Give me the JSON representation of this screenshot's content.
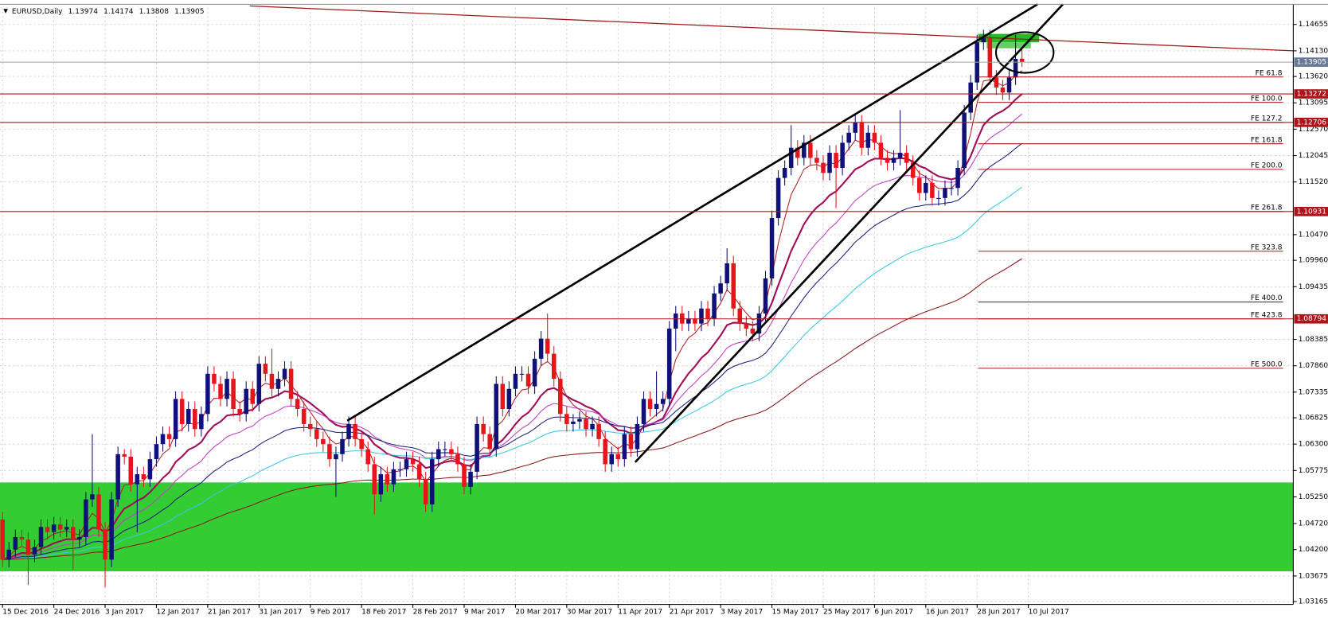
{
  "chart_data": {
    "type": "candlestick",
    "symbol": "EURUSD,Daily",
    "up_color": "#10107a",
    "down_color": "#e8141c",
    "grid": true,
    "xlim": [
      0,
      201
    ],
    "ylim": [
      1.0311,
      1.1499
    ],
    "xticks": [
      {
        "value": 0,
        "label": "15 Dec 2016"
      },
      {
        "value": 8,
        "label": "24 Dec 2016"
      },
      {
        "value": 16,
        "label": "3 Jan 2017"
      },
      {
        "value": 24,
        "label": "12 Jan 2017"
      },
      {
        "value": 32,
        "label": "21 Jan 2017"
      },
      {
        "value": 40,
        "label": "31 Jan 2017"
      },
      {
        "value": 48,
        "label": "9 Feb 2017"
      },
      {
        "value": 56,
        "label": "18 Feb 2017"
      },
      {
        "value": 64,
        "label": "28 Feb 2017"
      },
      {
        "value": 72,
        "label": "9 Mar 2017"
      },
      {
        "value": 80,
        "label": "20 Mar 2017"
      },
      {
        "value": 88,
        "label": "30 Mar 2017"
      },
      {
        "value": 96,
        "label": "11 Apr 2017"
      },
      {
        "value": 104,
        "label": "21 Apr 2017"
      },
      {
        "value": 112,
        "label": "3 May 2017"
      },
      {
        "value": 120,
        "label": "15 May 2017"
      },
      {
        "value": 128,
        "label": "25 May 2017"
      },
      {
        "value": 136,
        "label": "6 Jun 2017"
      },
      {
        "value": 144,
        "label": "16 Jun 2017"
      },
      {
        "value": 152,
        "label": "28 Jun 2017"
      },
      {
        "value": 160,
        "label": "10 Jul 2017"
      }
    ],
    "yticks": [
      1.14655,
      {
        "value": 1.1413,
        "label": "1.14130"
      },
      {
        "value": 1.1362,
        "label": "1.13620"
      },
      1.13095,
      {
        "value": 1.1257,
        "label": "1.12570"
      },
      1.12045,
      {
        "value": 1.1152,
        "label": "1.11520"
      },
      {
        "value": 1.1047,
        "label": "1.10470"
      },
      {
        "value": 1.0996,
        "label": "1.09960"
      },
      1.09435,
      1.08385,
      {
        "value": 1.0786,
        "label": "1.07860"
      },
      1.07335,
      1.06825,
      {
        "value": 1.063,
        "label": "1.06300"
      },
      1.05775,
      {
        "value": 1.0525,
        "label": "1.05250"
      },
      {
        "value": 1.0472,
        "label": "1.04720"
      },
      {
        "value": 1.042,
        "label": "1.04200"
      },
      1.03675,
      1.03165
    ],
    "price_lines": [
      {
        "value": 1.13905,
        "color": "#6a7a95"
      },
      {
        "value": 1.13272,
        "color": "#b0141a"
      },
      {
        "value": 1.12706,
        "color": "#b0141a"
      },
      {
        "value": 1.10931,
        "color": "#b0141a"
      },
      {
        "value": 1.08794,
        "color": "#b0141a"
      }
    ],
    "fe_levels": [
      {
        "label": "FE 61.8",
        "price": 1.1361
      },
      {
        "label": "FE 100.0",
        "price": 1.13105
      },
      {
        "label": "FE 127.2",
        "price": 1.12706
      },
      {
        "label": "FE 161.8",
        "price": 1.1228
      },
      {
        "label": "FE 200.0",
        "price": 1.1177
      },
      {
        "label": "FE 261.8",
        "price": 1.10931
      },
      {
        "label": "FE 323.8",
        "price": 1.1014
      },
      {
        "label": "FE 400.0",
        "price": 1.0913
      },
      {
        "label": "FE 423.8",
        "price": 1.08794
      },
      {
        "label": "FE 500.0",
        "price": 1.0781
      }
    ],
    "moving_averages": [
      {
        "period": 5,
        "color": "#b22222"
      },
      {
        "period": 13,
        "color": "#a0105a"
      },
      {
        "period": 21,
        "color": "#c040c0"
      },
      {
        "period": 34,
        "color": "#1a237e"
      },
      {
        "period": 55,
        "color": "#38c8e8"
      },
      {
        "period": 100,
        "color": "#8b1a1a"
      }
    ],
    "ohlc": [
      [
        1.048,
        1.0495,
        1.0385,
        1.04
      ],
      [
        1.04,
        1.0435,
        1.0385,
        1.042
      ],
      [
        1.042,
        1.046,
        1.0405,
        1.0445
      ],
      [
        1.0445,
        1.046,
        1.0425,
        1.044
      ],
      [
        1.044,
        1.0455,
        1.035,
        1.041
      ],
      [
        1.041,
        1.044,
        1.0395,
        1.0425
      ],
      [
        1.0425,
        1.048,
        1.041,
        1.0465
      ],
      [
        1.0465,
        1.048,
        1.044,
        1.0455
      ],
      [
        1.0455,
        1.0485,
        1.044,
        1.047
      ],
      [
        1.047,
        1.0485,
        1.0445,
        1.046
      ],
      [
        1.046,
        1.048,
        1.0445,
        1.0465
      ],
      [
        1.0465,
        1.048,
        1.038,
        1.044
      ],
      [
        1.044,
        1.046,
        1.0425,
        1.0445
      ],
      [
        1.0445,
        1.0535,
        1.043,
        1.052
      ],
      [
        1.052,
        1.065,
        1.0505,
        1.053
      ],
      [
        1.053,
        1.0545,
        1.0445,
        1.046
      ],
      [
        1.046,
        1.0475,
        1.0345,
        1.04
      ],
      [
        1.04,
        1.0535,
        1.0385,
        1.052
      ],
      [
        1.052,
        1.0625,
        1.0505,
        1.061
      ],
      [
        1.061,
        1.062,
        1.059,
        1.0605
      ],
      [
        1.0605,
        1.062,
        1.0535,
        1.055
      ],
      [
        1.055,
        1.0585,
        1.0455,
        1.057
      ],
      [
        1.057,
        1.0585,
        1.0545,
        1.056
      ],
      [
        1.056,
        1.0615,
        1.0545,
        1.06
      ],
      [
        1.06,
        1.0645,
        1.0585,
        1.063
      ],
      [
        1.063,
        1.0665,
        1.0615,
        1.065
      ],
      [
        1.065,
        1.0665,
        1.0625,
        1.064
      ],
      [
        1.064,
        1.0735,
        1.0625,
        1.072
      ],
      [
        1.072,
        1.0735,
        1.0655,
        1.067
      ],
      [
        1.067,
        1.0715,
        1.0655,
        1.07
      ],
      [
        1.07,
        1.0715,
        1.0645,
        1.066
      ],
      [
        1.066,
        1.0705,
        1.0645,
        1.069
      ],
      [
        1.069,
        1.0785,
        1.0675,
        1.077
      ],
      [
        1.077,
        1.0785,
        1.0735,
        1.075
      ],
      [
        1.075,
        1.0765,
        1.0705,
        1.072
      ],
      [
        1.072,
        1.0775,
        1.0705,
        1.076
      ],
      [
        1.076,
        1.0775,
        1.0685,
        1.07
      ],
      [
        1.07,
        1.0715,
        1.0675,
        1.069
      ],
      [
        1.069,
        1.0755,
        1.0675,
        1.074
      ],
      [
        1.074,
        1.0755,
        1.0695,
        1.071
      ],
      [
        1.071,
        1.0805,
        1.0695,
        1.079
      ],
      [
        1.079,
        1.0805,
        1.0755,
        1.077
      ],
      [
        1.077,
        1.082,
        1.0725,
        1.074
      ],
      [
        1.074,
        1.0775,
        1.0725,
        1.076
      ],
      [
        1.076,
        1.0795,
        1.0745,
        1.078
      ],
      [
        1.078,
        1.0795,
        1.0705,
        1.072
      ],
      [
        1.072,
        1.0735,
        1.0685,
        1.07
      ],
      [
        1.07,
        1.0715,
        1.0655,
        1.067
      ],
      [
        1.067,
        1.0685,
        1.0645,
        1.066
      ],
      [
        1.066,
        1.0675,
        1.0625,
        1.064
      ],
      [
        1.064,
        1.0655,
        1.0615,
        1.063
      ],
      [
        1.063,
        1.0645,
        1.0585,
        1.06
      ],
      [
        1.06,
        1.0625,
        1.0525,
        1.061
      ],
      [
        1.061,
        1.0655,
        1.0595,
        1.064
      ],
      [
        1.064,
        1.0685,
        1.0625,
        1.067
      ],
      [
        1.067,
        1.0685,
        1.0625,
        1.064
      ],
      [
        1.064,
        1.0655,
        1.0605,
        1.062
      ],
      [
        1.062,
        1.0635,
        1.0575,
        1.059
      ],
      [
        1.059,
        1.0605,
        1.049,
        1.053
      ],
      [
        1.053,
        1.0585,
        1.0515,
        1.057
      ],
      [
        1.057,
        1.0585,
        1.0535,
        1.055
      ],
      [
        1.055,
        1.0595,
        1.0535,
        1.058
      ],
      [
        1.058,
        1.0595,
        1.0565,
        1.058
      ],
      [
        1.058,
        1.0615,
        1.0565,
        1.06
      ],
      [
        1.06,
        1.0615,
        1.0575,
        1.059
      ],
      [
        1.059,
        1.0605,
        1.0545,
        1.056
      ],
      [
        1.056,
        1.0575,
        1.0495,
        1.051
      ],
      [
        1.051,
        1.0615,
        1.0495,
        1.06
      ],
      [
        1.06,
        1.0635,
        1.0585,
        1.062
      ],
      [
        1.062,
        1.0635,
        1.0605,
        1.062
      ],
      [
        1.062,
        1.0635,
        1.0595,
        1.061
      ],
      [
        1.061,
        1.0625,
        1.0575,
        1.059
      ],
      [
        1.059,
        1.0605,
        1.053,
        1.0545
      ],
      [
        1.0545,
        1.059,
        1.053,
        1.0575
      ],
      [
        1.0575,
        1.0685,
        1.056,
        1.067
      ],
      [
        1.067,
        1.0685,
        1.0635,
        1.065
      ],
      [
        1.065,
        1.0665,
        1.0605,
        1.062
      ],
      [
        1.062,
        1.0765,
        1.0605,
        1.075
      ],
      [
        1.075,
        1.0765,
        1.0685,
        1.07
      ],
      [
        1.07,
        1.0755,
        1.0685,
        1.074
      ],
      [
        1.074,
        1.0785,
        1.0725,
        1.077
      ],
      [
        1.077,
        1.0785,
        1.0755,
        1.077
      ],
      [
        1.077,
        1.0785,
        1.073,
        1.0745
      ],
      [
        1.0745,
        1.0815,
        1.073,
        1.08
      ],
      [
        1.08,
        1.0855,
        1.0785,
        1.084
      ],
      [
        1.084,
        1.089,
        1.0795,
        1.081
      ],
      [
        1.081,
        1.0825,
        1.0745,
        1.076
      ],
      [
        1.076,
        1.0775,
        1.0675,
        1.069
      ],
      [
        1.069,
        1.0705,
        1.0655,
        1.067
      ],
      [
        1.067,
        1.069,
        1.0655,
        1.0675
      ],
      [
        1.0675,
        1.0695,
        1.066,
        1.068
      ],
      [
        1.068,
        1.0695,
        1.0645,
        1.066
      ],
      [
        1.066,
        1.0685,
        1.0645,
        1.067
      ],
      [
        1.067,
        1.0685,
        1.0625,
        1.064
      ],
      [
        1.064,
        1.0655,
        1.0575,
        1.059
      ],
      [
        1.059,
        1.0625,
        1.0575,
        1.061
      ],
      [
        1.061,
        1.0625,
        1.0585,
        1.06
      ],
      [
        1.06,
        1.0665,
        1.0585,
        1.065
      ],
      [
        1.065,
        1.0665,
        1.0605,
        1.062
      ],
      [
        1.062,
        1.0685,
        1.0605,
        1.067
      ],
      [
        1.067,
        1.0735,
        1.0655,
        1.072
      ],
      [
        1.072,
        1.0735,
        1.0685,
        1.07
      ],
      [
        1.07,
        1.0775,
        1.0685,
        1.071
      ],
      [
        1.071,
        1.0735,
        1.0695,
        1.072
      ],
      [
        1.072,
        1.0875,
        1.0705,
        1.086
      ],
      [
        1.086,
        1.0905,
        1.0815,
        1.089
      ],
      [
        1.089,
        1.0905,
        1.0855,
        1.087
      ],
      [
        1.087,
        1.0895,
        1.0855,
        1.088
      ],
      [
        1.088,
        1.0895,
        1.0855,
        1.087
      ],
      [
        1.087,
        1.0915,
        1.0855,
        1.09
      ],
      [
        1.09,
        1.0915,
        1.0865,
        1.088
      ],
      [
        1.088,
        1.0945,
        1.0865,
        1.093
      ],
      [
        1.093,
        1.0965,
        1.0915,
        1.095
      ],
      [
        1.095,
        1.102,
        1.0935,
        1.099
      ],
      [
        1.099,
        1.1005,
        1.0885,
        1.09
      ],
      [
        1.09,
        1.0915,
        1.0855,
        1.087
      ],
      [
        1.087,
        1.0885,
        1.0845,
        1.086
      ],
      [
        1.086,
        1.0875,
        1.0835,
        1.085
      ],
      [
        1.085,
        1.0905,
        1.0835,
        1.089
      ],
      [
        1.089,
        1.0975,
        1.0875,
        1.096
      ],
      [
        1.096,
        1.1095,
        1.0945,
        1.108
      ],
      [
        1.108,
        1.1175,
        1.1065,
        1.116
      ],
      [
        1.116,
        1.1195,
        1.1145,
        1.118
      ],
      [
        1.118,
        1.1265,
        1.1165,
        1.122
      ],
      [
        1.122,
        1.1235,
        1.1185,
        1.12
      ],
      [
        1.12,
        1.1245,
        1.1185,
        1.123
      ],
      [
        1.123,
        1.1245,
        1.1185,
        1.12
      ],
      [
        1.12,
        1.1215,
        1.1175,
        1.119
      ],
      [
        1.119,
        1.1205,
        1.1155,
        1.117
      ],
      [
        1.117,
        1.1225,
        1.1155,
        1.121
      ],
      [
        1.121,
        1.1225,
        1.11,
        1.118
      ],
      [
        1.118,
        1.1245,
        1.1165,
        1.123
      ],
      [
        1.123,
        1.1265,
        1.1215,
        1.125
      ],
      [
        1.125,
        1.1285,
        1.1235,
        1.127
      ],
      [
        1.127,
        1.1285,
        1.1205,
        1.122
      ],
      [
        1.122,
        1.1265,
        1.1205,
        1.125
      ],
      [
        1.125,
        1.1265,
        1.1215,
        1.123
      ],
      [
        1.123,
        1.1245,
        1.1185,
        1.12
      ],
      [
        1.12,
        1.1215,
        1.1175,
        1.119
      ],
      [
        1.119,
        1.1215,
        1.1175,
        1.12
      ],
      [
        1.12,
        1.1295,
        1.1185,
        1.121
      ],
      [
        1.121,
        1.1225,
        1.1175,
        1.119
      ],
      [
        1.119,
        1.1205,
        1.1145,
        1.116
      ],
      [
        1.116,
        1.1175,
        1.1115,
        1.113
      ],
      [
        1.113,
        1.1165,
        1.1115,
        1.115
      ],
      [
        1.115,
        1.1165,
        1.1105,
        1.112
      ],
      [
        1.112,
        1.1135,
        1.1105,
        1.112
      ],
      [
        1.112,
        1.1155,
        1.1105,
        1.114
      ],
      [
        1.114,
        1.1155,
        1.1125,
        1.114
      ],
      [
        1.114,
        1.1195,
        1.1125,
        1.118
      ],
      [
        1.118,
        1.1305,
        1.1165,
        1.129
      ],
      [
        1.129,
        1.1365,
        1.1275,
        1.135
      ],
      [
        1.135,
        1.1445,
        1.1335,
        1.143
      ],
      [
        1.143,
        1.1455,
        1.1415,
        1.144
      ],
      [
        1.144,
        1.1455,
        1.1345,
        1.136
      ],
      [
        1.136,
        1.1375,
        1.1325,
        1.134
      ],
      [
        1.134,
        1.1355,
        1.1315,
        1.133
      ],
      [
        1.133,
        1.1375,
        1.1315,
        1.136
      ],
      [
        1.136,
        1.1445,
        1.1345,
        1.1397
      ],
      [
        1.13974,
        1.14174,
        1.13808,
        1.13905
      ]
    ]
  }
}
